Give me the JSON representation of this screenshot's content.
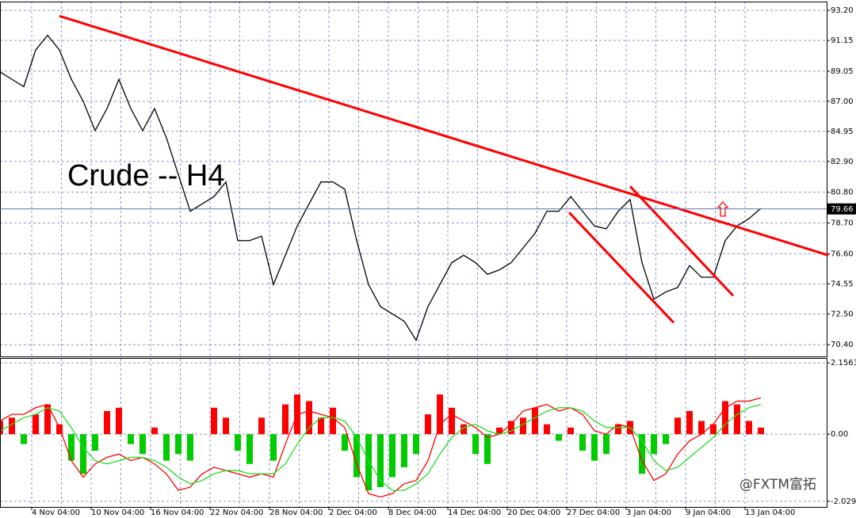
{
  "chart_data": [
    {
      "type": "line",
      "annotation": "Crude -- H4",
      "x": [
        0,
        3,
        6,
        9,
        12,
        15,
        18,
        21,
        24,
        27,
        30,
        33,
        36,
        39,
        42,
        45,
        48,
        51,
        54,
        57,
        60,
        63,
        66,
        69,
        72,
        75,
        78,
        81,
        84,
        87,
        90,
        93,
        96,
        99,
        102,
        105,
        108,
        111,
        114,
        117,
        120,
        123,
        126,
        129,
        132,
        135,
        138,
        141,
        144,
        147,
        150,
        153,
        156,
        159,
        162,
        165,
        168,
        171,
        174,
        177,
        180,
        183,
        186,
        189,
        192
      ],
      "series": [
        {
          "type": "line",
          "color": "#000000",
          "values": [
            89.0,
            88.5,
            88.0,
            90.5,
            91.5,
            90.5,
            88.5,
            87.0,
            85.0,
            86.5,
            88.5,
            86.5,
            85.0,
            86.5,
            84.5,
            82.0,
            79.5,
            80.0,
            80.5,
            81.5,
            77.5,
            77.5,
            77.8,
            74.5,
            76.5,
            78.5,
            80.0,
            81.5,
            81.5,
            81.0,
            77.5,
            74.5,
            73.0,
            72.5,
            72.0,
            70.7,
            73.0,
            74.5,
            76.0,
            76.5,
            76.0,
            75.2,
            75.5,
            76.0,
            77.0,
            78.0,
            79.5,
            79.5,
            80.5,
            79.5,
            78.5,
            78.3,
            79.5,
            80.3,
            76.0,
            73.5,
            74.0,
            74.3,
            75.8,
            75.0,
            75.0,
            77.5,
            78.5,
            79.0,
            79.7
          ]
        }
      ],
      "last_price": 79.66,
      "trendline_color": "#ff0000",
      "trendlines": [
        {
          "x": [
            15,
            209
          ],
          "y": [
            92.82,
            76.5
          ]
        },
        {
          "x": [
            143.6,
            170
          ],
          "y": [
            79.42,
            71.9
          ]
        },
        {
          "x": [
            159,
            185
          ],
          "y": [
            81.2,
            73.74
          ]
        }
      ],
      "signal_arrow": {
        "x": 182.4,
        "y": 79.6
      },
      "xlim": [
        0,
        208.6
      ],
      "ylim": [
        69.6,
        93.8
      ],
      "yticks": [
        {
          "value": 93.2,
          "label": "93.20"
        },
        91.15,
        89.05,
        {
          "value": 87,
          "label": "87.00"
        },
        84.95,
        {
          "value": 82.9,
          "label": "82.90"
        },
        {
          "value": 80.8,
          "label": "80.80"
        },
        {
          "value": 78.7,
          "label": "78.70"
        },
        {
          "value": 76.6,
          "label": "76.60"
        },
        74.55,
        {
          "value": 72.5,
          "label": "72.50"
        },
        {
          "value": 70.4,
          "label": "70.40"
        }
      ],
      "grid": true
    },
    {
      "type": "bar",
      "x": [
        0,
        3,
        6,
        9,
        12,
        15,
        18,
        21,
        24,
        27,
        30,
        33,
        36,
        39,
        42,
        45,
        48,
        51,
        54,
        57,
        60,
        63,
        66,
        69,
        72,
        75,
        78,
        81,
        84,
        87,
        90,
        93,
        96,
        99,
        102,
        105,
        108,
        111,
        114,
        117,
        120,
        123,
        126,
        129,
        132,
        135,
        138,
        141,
        144,
        147,
        150,
        153,
        156,
        159,
        162,
        165,
        168,
        171,
        174,
        177,
        180,
        183,
        186,
        189,
        192
      ],
      "series": [
        {
          "type": "bar",
          "color": "#ff0000",
          "negative_color": "#00cc00",
          "values": [
            0.4,
            0.5,
            -0.3,
            0.6,
            0.9,
            0.3,
            -0.8,
            -1.2,
            -0.5,
            0.7,
            0.8,
            -0.3,
            -0.6,
            0.2,
            -0.8,
            -0.6,
            -0.8,
            0,
            0.8,
            0.5,
            -0.5,
            -0.9,
            0.5,
            -0.8,
            0.9,
            1.2,
            1.0,
            0.5,
            0.8,
            -0.5,
            -1.3,
            -1.7,
            -1.6,
            -1.3,
            -1.0,
            -0.6,
            0.6,
            1.2,
            0.8,
            0.3,
            -0.6,
            -0.9,
            0.2,
            0.4,
            0.5,
            0.8,
            0.3,
            -0.2,
            0.2,
            -0.5,
            -0.8,
            -0.6,
            0.3,
            0.4,
            -1.2,
            -0.6,
            -0.3,
            0.5,
            0.7,
            0.4,
            0.3,
            1.0,
            0.9,
            0.4,
            0.2
          ]
        },
        {
          "type": "line",
          "color": "#ff0000",
          "values": [
            0.4,
            0.6,
            0.6,
            0.8,
            0.9,
            0.2,
            -0.8,
            -1.3,
            -0.9,
            -0.7,
            -0.6,
            -0.8,
            -0.7,
            -0.9,
            -1.2,
            -1.7,
            -1.6,
            -1.2,
            -1.0,
            -1.1,
            -1.2,
            -1.3,
            -1.2,
            -1.3,
            -0.3,
            0.6,
            0.7,
            0.6,
            0.5,
            0.2,
            -0.9,
            -1.8,
            -1.9,
            -1.8,
            -1.5,
            -1.4,
            -0.8,
            0.3,
            0.6,
            0.4,
            0.2,
            -0.1,
            0.0,
            0.3,
            0.7,
            0.8,
            0.9,
            0.7,
            0.8,
            0.6,
            0.1,
            0.0,
            0.3,
            0.2,
            -0.8,
            -1.4,
            -1.2,
            -0.6,
            -0.2,
            0.0,
            0.3,
            0.8,
            1.0,
            1.0,
            1.1
          ]
        },
        {
          "type": "line",
          "color": "#22dd22",
          "values": [
            0.1,
            0.3,
            0.5,
            0.6,
            0.8,
            0.7,
            0.2,
            -0.4,
            -0.8,
            -0.9,
            -0.8,
            -0.7,
            -0.7,
            -0.8,
            -1.0,
            -1.3,
            -1.5,
            -1.4,
            -1.2,
            -1.1,
            -1.1,
            -1.2,
            -1.2,
            -1.2,
            -0.9,
            -0.3,
            0.2,
            0.5,
            0.5,
            0.4,
            -0.1,
            -0.8,
            -1.4,
            -1.7,
            -1.7,
            -1.5,
            -1.2,
            -0.6,
            -0.1,
            0.2,
            0.3,
            0.1,
            0.0,
            0.1,
            0.3,
            0.5,
            0.7,
            0.8,
            0.8,
            0.7,
            0.4,
            0.2,
            0.2,
            0.2,
            -0.2,
            -0.8,
            -1.1,
            -1.0,
            -0.7,
            -0.4,
            -0.1,
            0.3,
            0.6,
            0.8,
            0.9
          ]
        }
      ],
      "xlim": [
        0,
        208.6
      ],
      "ylim": [
        -2.2,
        2.28
      ],
      "yticks": [
        2.1563,
        {
          "value": 0,
          "label": "0.00"
        },
        -2.0293
      ],
      "xticks": [
        {
          "value": 8,
          "label": "4 Nov 04:00"
        },
        {
          "value": 23,
          "label": "10 Nov 04:00"
        },
        {
          "value": 38,
          "label": "16 Nov 04:00"
        },
        {
          "value": 53,
          "label": "22 Nov 04:00"
        },
        {
          "value": 68,
          "label": "28 Nov 04:00"
        },
        {
          "value": 83,
          "label": "2 Dec 04:00"
        },
        {
          "value": 98,
          "label": "8 Dec 04:00"
        },
        {
          "value": 113,
          "label": "14 Dec 04:00"
        },
        {
          "value": 128,
          "label": "20 Dec 04:00"
        },
        {
          "value": 143,
          "label": "27 Dec 04:00"
        },
        {
          "value": 158,
          "label": "3 Jan 04:00"
        },
        {
          "value": 173,
          "label": "9 Jan 04:00"
        },
        {
          "value": 188,
          "label": "13 Jan 04:00"
        }
      ],
      "grid": true
    }
  ],
  "watermark": "@FXTM富拓"
}
